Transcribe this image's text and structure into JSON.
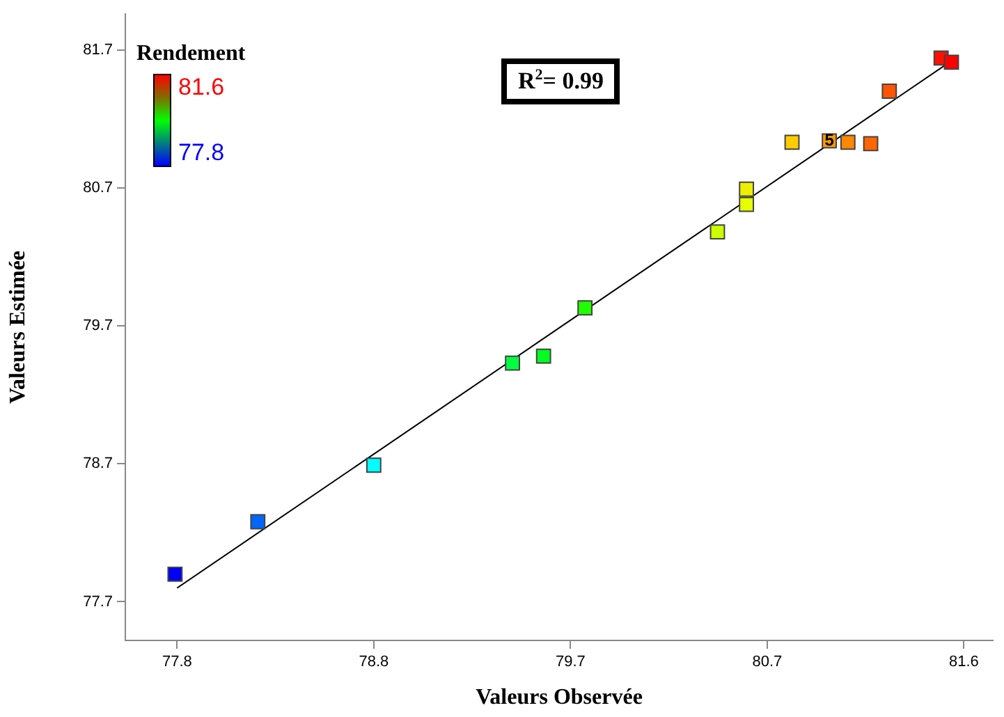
{
  "chart_data": {
    "type": "scatter",
    "xlabel": "Valeurs Observée",
    "ylabel": "Valeurs Estimée",
    "clabel": "Rendement",
    "xlim": [
      77.55,
      81.74
    ],
    "ylim": [
      77.42,
      81.96
    ],
    "xticks": [
      77.8,
      {
        "value": 78.75,
        "label": "78.8"
      },
      79.7,
      {
        "value": 80.65,
        "label": "80.7"
      },
      81.6
    ],
    "yticks": [
      77.7,
      78.7,
      79.7,
      80.7,
      81.7
    ],
    "grid": false,
    "legend": false,
    "marker": "square",
    "series": [
      {
        "x": [
          77.79,
          78.19,
          78.75,
          79.42,
          79.57,
          79.77,
          80.41,
          80.55,
          80.55,
          80.77,
          80.95,
          81.04,
          81.15,
          81.24,
          81.49,
          81.54
        ],
        "values": [
          77.9,
          78.28,
          78.69,
          79.43,
          79.48,
          79.83,
          80.38,
          80.58,
          80.69,
          81.03,
          81.04,
          81.03,
          81.02,
          81.4,
          81.64,
          81.61
        ],
        "colors": [
          "#0000ff",
          "#0066ff",
          "#00ffff",
          "#00ff40",
          "#00ff20",
          "#20ff00",
          "#ccff00",
          "#e6ff00",
          "#eeee00",
          "#ffcc00",
          "#ff9900",
          "#ff8800",
          "#ff6600",
          "#ff5500",
          "#ff1100",
          "#ff0000"
        ]
      },
      {
        "type": "line",
        "x": [
          77.8,
          81.55
        ],
        "values": [
          77.8,
          81.63
        ],
        "color": "#000000",
        "marker": "none",
        "line_style": "solid"
      }
    ],
    "annotations": [
      "R$^{2}$= 0.99",
      "81.6",
      "77.8",
      {
        "text": "5",
        "x": 80.95,
        "y": 81.04
      }
    ]
  }
}
